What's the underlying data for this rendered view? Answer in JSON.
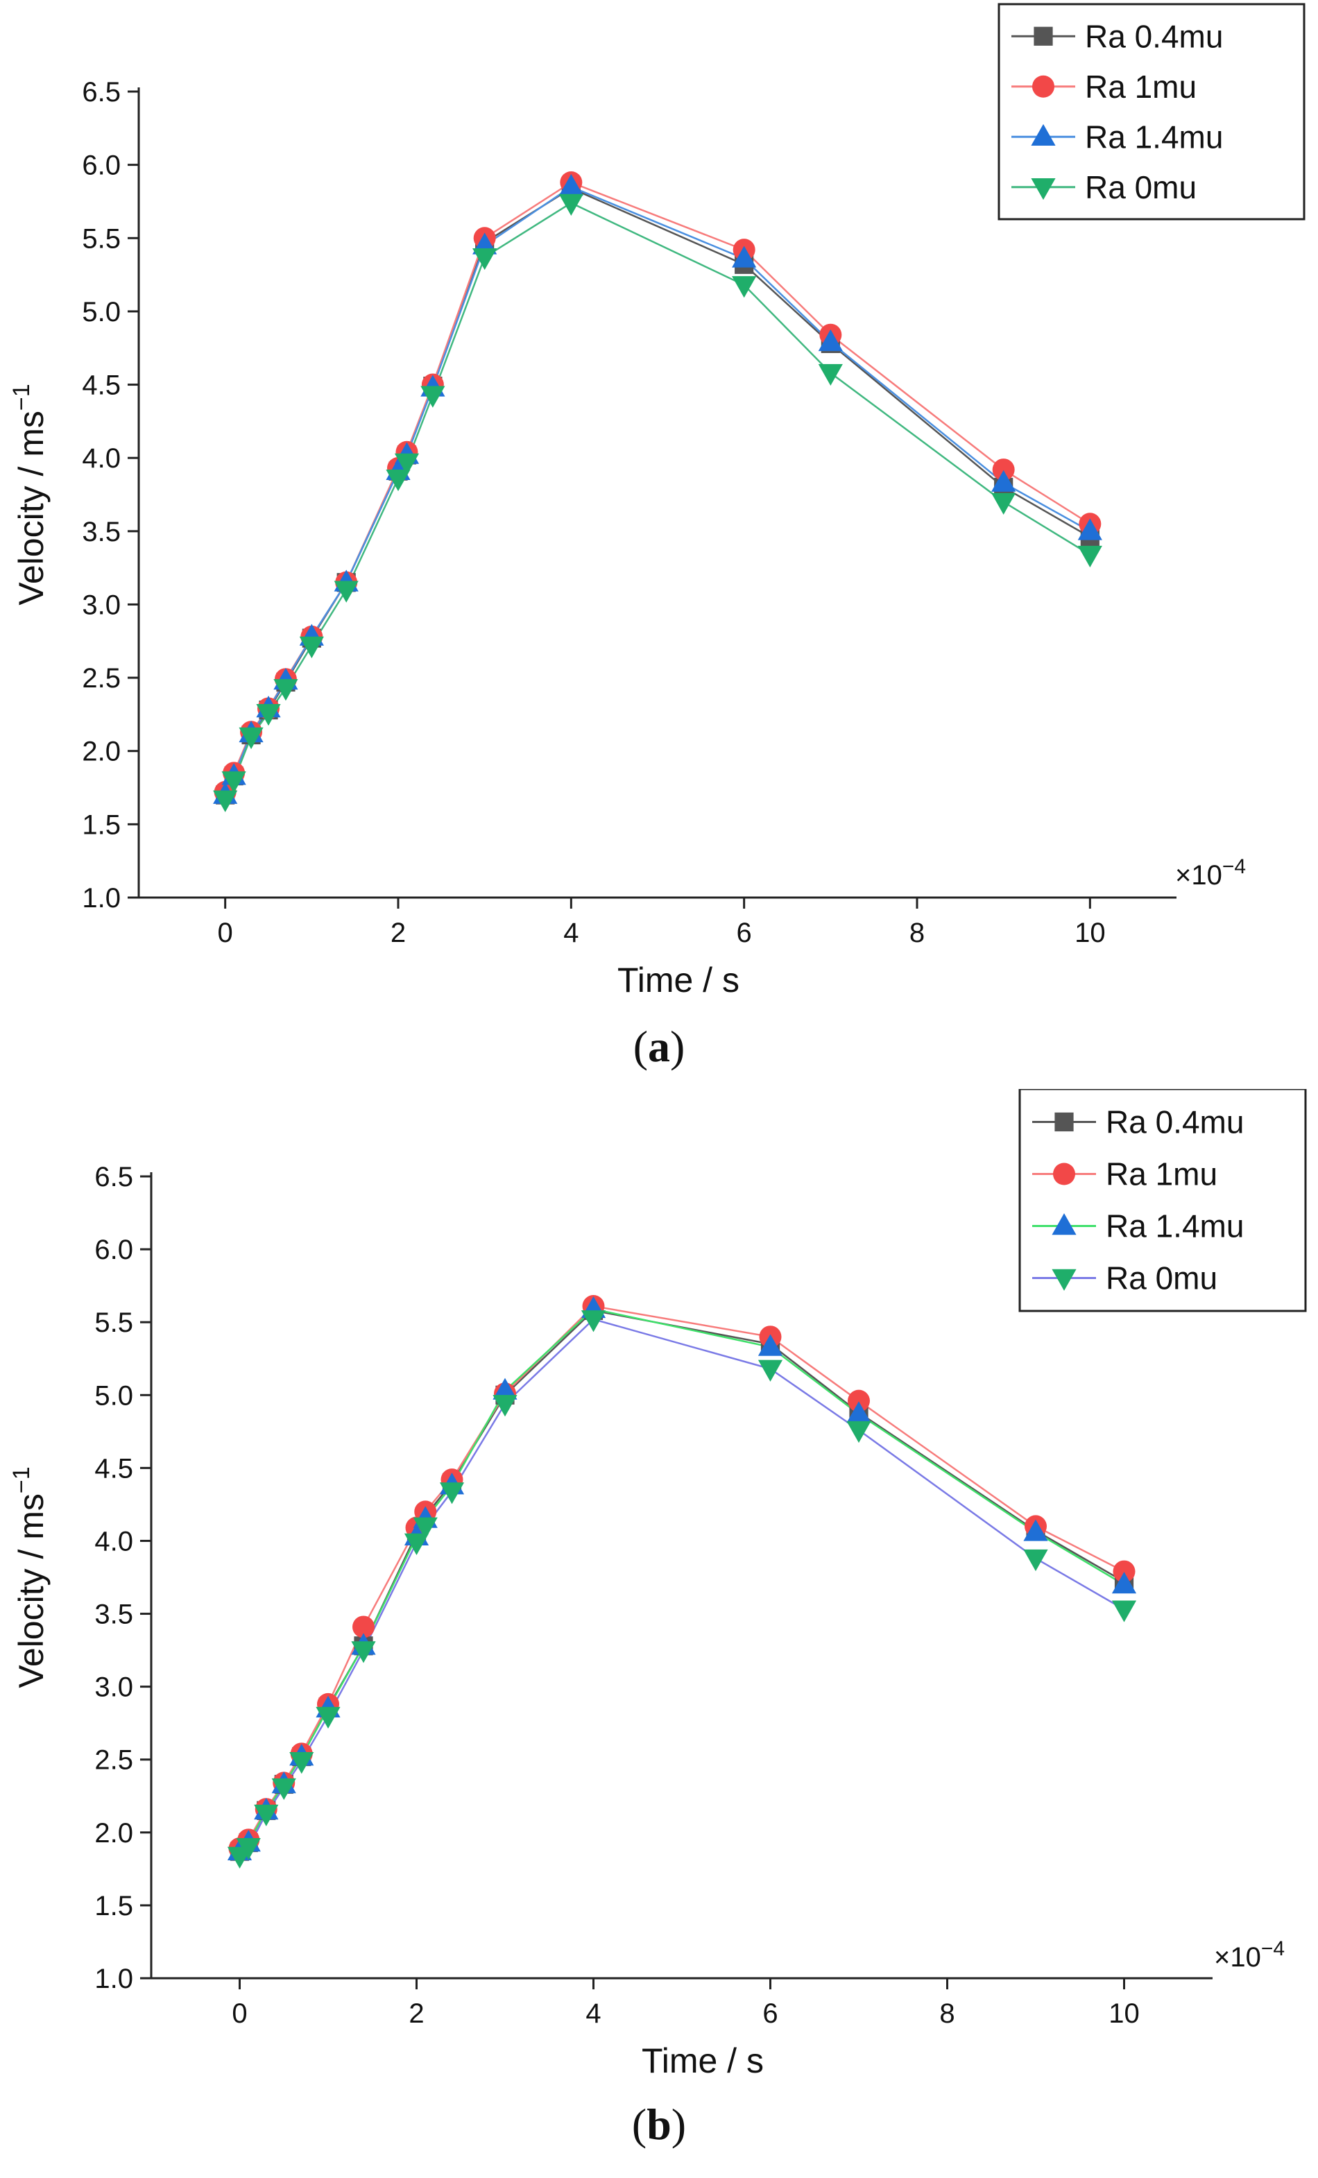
{
  "chart_data": [
    {
      "type": "line",
      "panel_label": "a",
      "xlabel": "Time / s",
      "ylabel": "Velocity / ms",
      "ylabel_superscript": "−1",
      "x_multiplier": "×10",
      "x_multiplier_exp": "−4",
      "xlim": [
        -1,
        11
      ],
      "ylim": [
        1.0,
        6.5
      ],
      "x_ticks": [
        0,
        2,
        4,
        6,
        8,
        10
      ],
      "y_ticks": [
        "1.0",
        "1.5",
        "2.0",
        "2.5",
        "3.0",
        "3.5",
        "4.0",
        "4.5",
        "5.0",
        "5.5",
        "6.0",
        "6.5"
      ],
      "grid": false,
      "legend_position": "top-right",
      "x": [
        0,
        0.1,
        0.3,
        0.5,
        0.7,
        1.0,
        1.4,
        2.0,
        2.1,
        2.4,
        3.0,
        4.0,
        6.0,
        7.0,
        9.0,
        10.0
      ],
      "series": [
        {
          "name": "Ra 0.4mu",
          "color": "#555555",
          "line_color": "#555555",
          "marker": "square",
          "values": [
            1.7,
            1.83,
            2.11,
            2.28,
            2.47,
            2.77,
            3.15,
            3.91,
            4.02,
            4.49,
            5.47,
            5.84,
            5.32,
            4.78,
            3.8,
            3.46
          ]
        },
        {
          "name": "Ra 1mu",
          "color": "#f24848",
          "line_color": "#f77b7b",
          "marker": "circle",
          "values": [
            1.72,
            1.85,
            2.13,
            2.29,
            2.49,
            2.78,
            3.15,
            3.93,
            4.04,
            4.5,
            5.5,
            5.88,
            5.42,
            4.84,
            3.92,
            3.55
          ]
        },
        {
          "name": "Ra 1.4mu",
          "color": "#1f6fd6",
          "line_color": "#4a8fe0",
          "marker": "triangle-up",
          "values": [
            1.7,
            1.83,
            2.12,
            2.29,
            2.48,
            2.78,
            3.15,
            3.91,
            4.02,
            4.48,
            5.45,
            5.85,
            5.36,
            4.79,
            3.83,
            3.5
          ]
        },
        {
          "name": "Ra 0mu",
          "color": "#1fae6a",
          "line_color": "#40b880",
          "marker": "triangle-down",
          "values": [
            1.67,
            1.8,
            2.1,
            2.26,
            2.43,
            2.72,
            3.1,
            3.86,
            3.97,
            4.43,
            5.37,
            5.74,
            5.18,
            4.58,
            3.7,
            3.34
          ]
        }
      ]
    },
    {
      "type": "line",
      "panel_label": "b",
      "xlabel": "Time / s",
      "ylabel": "Velocity / ms",
      "ylabel_superscript": "−1",
      "x_multiplier": "×10",
      "x_multiplier_exp": "−4",
      "xlim": [
        -1,
        11
      ],
      "ylim": [
        1.0,
        6.5
      ],
      "x_ticks": [
        0,
        2,
        4,
        6,
        8,
        10
      ],
      "y_ticks": [
        "1.0",
        "1.5",
        "2.0",
        "2.5",
        "3.0",
        "3.5",
        "4.0",
        "4.5",
        "5.0",
        "5.5",
        "6.0",
        "6.5"
      ],
      "grid": false,
      "legend_position": "top-right",
      "x": [
        0,
        0.1,
        0.3,
        0.5,
        0.7,
        1.0,
        1.4,
        2.0,
        2.1,
        2.4,
        3.0,
        4.0,
        6.0,
        7.0,
        9.0,
        10.0
      ],
      "series": [
        {
          "name": "Ra 0.4mu",
          "color": "#555555",
          "line_color": "#555555",
          "marker": "square",
          "values": [
            1.87,
            1.93,
            2.15,
            2.33,
            2.52,
            2.86,
            3.28,
            4.05,
            4.17,
            4.4,
            5.0,
            5.58,
            5.35,
            4.88,
            4.07,
            3.72
          ]
        },
        {
          "name": "Ra 1mu",
          "color": "#f24848",
          "line_color": "#f77b7b",
          "marker": "circle",
          "values": [
            1.89,
            1.95,
            2.16,
            2.34,
            2.54,
            2.88,
            3.41,
            4.09,
            4.2,
            4.42,
            5.01,
            5.61,
            5.4,
            4.96,
            4.1,
            3.79
          ]
        },
        {
          "name": "Ra 1.4mu",
          "color": "#1f6fd6",
          "line_color": "#3ee06a",
          "marker": "triangle-up",
          "values": [
            1.87,
            1.93,
            2.15,
            2.33,
            2.52,
            2.85,
            3.28,
            4.03,
            4.15,
            4.38,
            5.03,
            5.59,
            5.33,
            4.87,
            4.06,
            3.7
          ]
        },
        {
          "name": "Ra 0mu",
          "color": "#1fae6a",
          "line_color": "#7a7ae6",
          "marker": "triangle-down",
          "values": [
            1.84,
            1.9,
            2.13,
            2.31,
            2.49,
            2.8,
            3.25,
            3.99,
            4.1,
            4.34,
            4.94,
            5.52,
            5.18,
            4.76,
            3.88,
            3.53
          ]
        }
      ]
    }
  ]
}
